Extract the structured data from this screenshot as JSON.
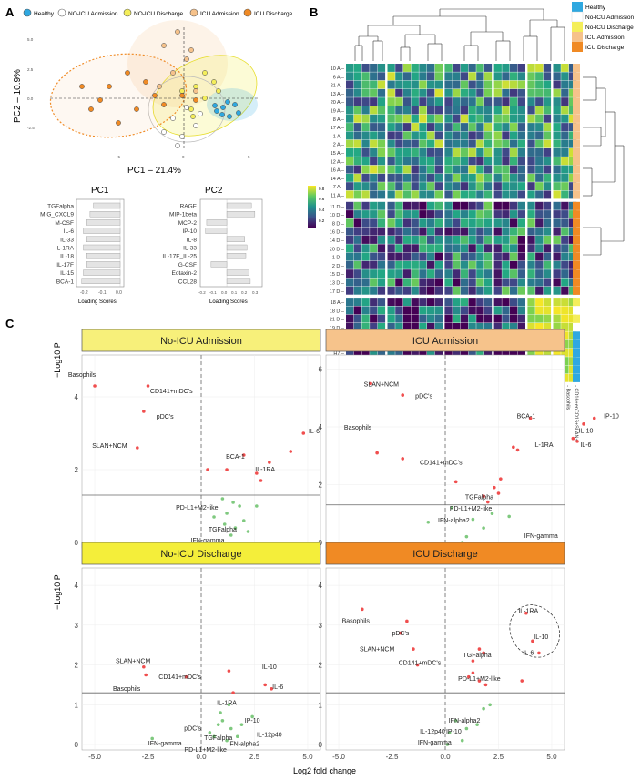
{
  "panel_labels": {
    "a": "A",
    "b": "B",
    "c": "C"
  },
  "colors": {
    "healthy": "#2fa8e0",
    "noicu_adm": "#ffffff",
    "noicu_dis": "#f4ee5a",
    "icu_adm": "#f6c28b",
    "icu_dis": "#f08a24",
    "sig": "#f04e4e",
    "nonsig": "#7fc97f"
  },
  "pca": {
    "legend": [
      "Healthy",
      "NO-ICU Admission",
      "NO-ICU Discharge",
      "ICU Admission",
      "ICU  Discharge"
    ],
    "xlabel": "PC1 – 21.4%",
    "ylabel": "PC2 – 10.9%",
    "xticks": [
      "-5",
      "0",
      "5"
    ],
    "yticks": [
      "5.0",
      "2.5",
      "0.0",
      "-2.5"
    ]
  },
  "loadings": {
    "pc1": {
      "title": "PC1",
      "labels": [
        "TGFalpha",
        "MIG_CXCL9",
        "M-CSF",
        "IL-6",
        "IL-33",
        "IL-1RA",
        "IL-18",
        "IL-17F",
        "IL-15",
        "BCA-1"
      ],
      "values": [
        -0.16,
        -0.18,
        -0.2,
        -0.22,
        -0.2,
        -0.22,
        -0.2,
        -0.2,
        -0.22,
        -0.23
      ],
      "xticks": [
        "-0.2",
        "-0.1",
        "0.0"
      ],
      "xlabel": "Loading Scores"
    },
    "pc2": {
      "title": "PC2",
      "labels": [
        "RAGE",
        "MIP-1beta",
        "MCP-2",
        "IP-10",
        "IL-8",
        "IL-33",
        "IL-17E_IL-25",
        "G-CSF",
        "Eotaxin-2",
        "CCL28"
      ],
      "values": [
        0.22,
        0.25,
        -0.18,
        -0.19,
        0.16,
        0.18,
        0.17,
        -0.14,
        0.2,
        0.21
      ],
      "xticks": [
        "-0.2",
        "-0.1",
        "0.0",
        "0.1",
        "0.2",
        "0.3"
      ],
      "xlabel": "Loading Scores"
    }
  },
  "heatmap": {
    "legend": [
      "Healthy",
      "No-ICU Admission",
      "No-ICU Discharge",
      "ICU Admission",
      "ICU Discharge"
    ],
    "scale_ticks": [
      "0.8",
      "0.6",
      "0.4",
      "0.2"
    ],
    "rows_top": [
      "10 A",
      "6 A",
      "21 A",
      "13 A",
      "20 A",
      "19 A",
      "8 A",
      "17 A",
      "1 A",
      "2 A",
      "15 A",
      "12 A",
      "16 A",
      "14 A",
      "7 A",
      "11 A"
    ],
    "rows_mid": [
      "11 D",
      "10 D",
      "8 D",
      "16 D",
      "14 D",
      "20 D",
      "1 D",
      "2 D",
      "15 D",
      "13 D",
      "17 D"
    ],
    "rows_bot": [
      "18 A",
      "18 D",
      "21 D",
      "19 D",
      "H11",
      "H9",
      "H7",
      "H13",
      "H10",
      "H8"
    ],
    "columns": [
      "CD163+++M2-like",
      "G-CSF",
      "IL-10",
      "RAGE",
      "IL-1RA",
      "MCP-2",
      "IL-13",
      "M-CSF",
      "IL-6",
      "IL-8",
      "IL-18A",
      "CCL28",
      "IL-16",
      "MIG_CXCL9",
      "IL-12p40",
      "IL-18",
      "IL-17F",
      "IL-1a",
      "IL-17F",
      "IL-33",
      "IL-25",
      "MIP-1beta",
      "PD-L1+M2-like",
      "Eotaxin-2",
      "CD141+mDC's",
      "pDC's",
      "Basophils",
      "CD16+enCD16+SLAN+"
    ],
    "col_gaps": [
      5,
      12,
      18,
      22,
      25
    ],
    "row_side_top": "icu_adm",
    "row_side_mid": "icu_dis"
  },
  "volcano": {
    "xlabel": "Log2 fold change",
    "ylabel": "−Log10 P",
    "xticks": [
      "-5.0",
      "-2.5",
      "0.0",
      "2.5",
      "5.0"
    ],
    "panels": [
      {
        "title": "No-ICU Admission",
        "ylim": [
          0,
          5
        ],
        "yticks": [
          "0",
          "2",
          "4"
        ],
        "labels": [
          {
            "t": "Basophils",
            "x": -5.6,
            "y": 4.55
          },
          {
            "t": "CD141+mDC's",
            "x": -1.4,
            "y": 4.1
          },
          {
            "t": "pDC's",
            "x": -1.7,
            "y": 3.4
          },
          {
            "t": "SLAN+NCM",
            "x": -4.3,
            "y": 2.6
          },
          {
            "t": "BCA-1",
            "x": 1.6,
            "y": 2.3
          },
          {
            "t": "IL-1RA",
            "x": 3.0,
            "y": 1.95
          },
          {
            "t": "IL-6",
            "x": 5.3,
            "y": 3.0
          },
          {
            "t": "IP-10",
            "x": 8.8,
            "y": 4.1
          },
          {
            "t": "IL-10",
            "x": 7.7,
            "y": 3.6
          },
          {
            "t": "PD-L1+M2-like",
            "x": -0.2,
            "y": 0.9
          },
          {
            "t": "TGFalpha",
            "x": 1.0,
            "y": 0.3
          },
          {
            "t": "IFN-gamma",
            "x": 0.3,
            "y": 0.0
          }
        ],
        "points": [
          {
            "x": -5.0,
            "y": 4.3,
            "s": 1
          },
          {
            "x": -2.5,
            "y": 4.3,
            "s": 1
          },
          {
            "x": -2.7,
            "y": 3.6,
            "s": 1
          },
          {
            "x": -3.0,
            "y": 2.6,
            "s": 1
          },
          {
            "x": 2.0,
            "y": 2.4,
            "s": 1
          },
          {
            "x": 2.6,
            "y": 1.9,
            "s": 1
          },
          {
            "x": 2.8,
            "y": 1.7,
            "s": 1
          },
          {
            "x": 3.2,
            "y": 2.2,
            "s": 1
          },
          {
            "x": 4.8,
            "y": 3.0,
            "s": 1
          },
          {
            "x": 6.8,
            "y": 3.7,
            "s": 1
          },
          {
            "x": 7.8,
            "y": 4.1,
            "s": 1
          },
          {
            "x": 4.2,
            "y": 2.5,
            "s": 1
          },
          {
            "x": 0.3,
            "y": 2.0,
            "s": 1
          },
          {
            "x": 1.2,
            "y": 2.0,
            "s": 1
          },
          {
            "x": 1.0,
            "y": 1.2,
            "s": 0
          },
          {
            "x": 1.5,
            "y": 1.1,
            "s": 0
          },
          {
            "x": 1.8,
            "y": 1.0,
            "s": 0
          },
          {
            "x": 1.2,
            "y": 0.8,
            "s": 0
          },
          {
            "x": 2.0,
            "y": 0.6,
            "s": 0
          },
          {
            "x": 2.2,
            "y": 0.3,
            "s": 0
          },
          {
            "x": 1.6,
            "y": 0.4,
            "s": 0
          },
          {
            "x": 1.1,
            "y": 0.5,
            "s": 0
          },
          {
            "x": 0.6,
            "y": 0.7,
            "s": 0
          },
          {
            "x": 2.6,
            "y": 1.0,
            "s": 0
          },
          {
            "x": 1.4,
            "y": 0.2,
            "s": 0
          }
        ]
      },
      {
        "title": "ICU Admission",
        "ylim": [
          0,
          6.3
        ],
        "yticks": [
          "0",
          "2",
          "4",
          "6"
        ],
        "labels": [
          {
            "t": "SLAN+NCM",
            "x": -3.0,
            "y": 5.4
          },
          {
            "t": "pDC's",
            "x": -1.0,
            "y": 5.0
          },
          {
            "t": "Basophils",
            "x": -4.1,
            "y": 3.9
          },
          {
            "t": "CD141+mDC's",
            "x": -0.2,
            "y": 2.7
          },
          {
            "t": "BCA-1",
            "x": 3.8,
            "y": 4.3
          },
          {
            "t": "IL-1RA",
            "x": 4.6,
            "y": 3.3
          },
          {
            "t": "IP-10",
            "x": 7.8,
            "y": 4.3
          },
          {
            "t": "IL-10",
            "x": 6.6,
            "y": 3.8
          },
          {
            "t": "IL-6",
            "x": 6.6,
            "y": 3.3
          },
          {
            "t": "TGFalpha",
            "x": 1.6,
            "y": 1.5
          },
          {
            "t": "PD-L1+M2-like",
            "x": 1.2,
            "y": 1.1
          },
          {
            "t": "IFN-alpha2",
            "x": 0.4,
            "y": 0.7
          },
          {
            "t": "IFN-gamma",
            "x": 4.5,
            "y": 0.15
          },
          {
            "t": "IL-12p40",
            "x": 0.2,
            "y": -0.25
          }
        ],
        "points": [
          {
            "x": -3.5,
            "y": 5.5,
            "s": 1
          },
          {
            "x": -2.0,
            "y": 5.1,
            "s": 1
          },
          {
            "x": -3.2,
            "y": 3.1,
            "s": 1
          },
          {
            "x": -2.0,
            "y": 2.9,
            "s": 1
          },
          {
            "x": 4.0,
            "y": 4.3,
            "s": 1
          },
          {
            "x": 3.2,
            "y": 3.3,
            "s": 1
          },
          {
            "x": 3.4,
            "y": 3.2,
            "s": 1
          },
          {
            "x": 6.5,
            "y": 4.1,
            "s": 1
          },
          {
            "x": 7.0,
            "y": 4.3,
            "s": 1
          },
          {
            "x": 6.0,
            "y": 3.6,
            "s": 1
          },
          {
            "x": 6.2,
            "y": 3.5,
            "s": 1
          },
          {
            "x": 0.5,
            "y": 2.1,
            "s": 1
          },
          {
            "x": 1.8,
            "y": 1.6,
            "s": 1
          },
          {
            "x": 2.5,
            "y": 1.7,
            "s": 1
          },
          {
            "x": 2.3,
            "y": 1.9,
            "s": 1
          },
          {
            "x": 2.0,
            "y": 1.4,
            "s": 1
          },
          {
            "x": 2.6,
            "y": 2.2,
            "s": 1
          },
          {
            "x": -0.8,
            "y": 0.7,
            "s": 0
          },
          {
            "x": 1.8,
            "y": 0.5,
            "s": 0
          },
          {
            "x": 2.2,
            "y": 1.0,
            "s": 0
          },
          {
            "x": 1.0,
            "y": 0.2,
            "s": 0
          },
          {
            "x": 0.8,
            "y": 0.0,
            "s": 0
          },
          {
            "x": 3.0,
            "y": 0.9,
            "s": 0
          },
          {
            "x": 0.3,
            "y": 1.2,
            "s": 0
          },
          {
            "x": 1.3,
            "y": 0.8,
            "s": 0
          }
        ]
      },
      {
        "title": "No-ICU Discharge",
        "ylim": [
          0,
          4.3
        ],
        "yticks": [
          "0",
          "1",
          "2",
          "3",
          "4"
        ],
        "labels": [
          {
            "t": "SLAN+NCM",
            "x": -3.2,
            "y": 2.05
          },
          {
            "t": "Basophils",
            "x": -3.5,
            "y": 1.35
          },
          {
            "t": "CD141+mDC's",
            "x": -1.0,
            "y": 1.65
          },
          {
            "t": "IL-10",
            "x": 3.2,
            "y": 1.9
          },
          {
            "t": "IL-6",
            "x": 3.6,
            "y": 1.4
          },
          {
            "t": "IL-1RA",
            "x": 1.2,
            "y": 1.0
          },
          {
            "t": "IP-10",
            "x": 2.4,
            "y": 0.55
          },
          {
            "t": "IL-12p40",
            "x": 3.2,
            "y": 0.2
          },
          {
            "t": "pDC's",
            "x": -0.4,
            "y": 0.35
          },
          {
            "t": "TGFalpha",
            "x": 0.8,
            "y": 0.12
          },
          {
            "t": "IFN-gamma",
            "x": -1.7,
            "y": -0.02
          },
          {
            "t": "IFN-alpha2",
            "x": 2.0,
            "y": -0.03
          },
          {
            "t": "PD-L1+M2-like",
            "x": 0.2,
            "y": -0.18
          }
        ],
        "points": [
          {
            "x": -2.7,
            "y": 1.95,
            "s": 1
          },
          {
            "x": -2.6,
            "y": 1.75,
            "s": 1
          },
          {
            "x": -0.7,
            "y": 1.7,
            "s": 1
          },
          {
            "x": 1.3,
            "y": 1.85,
            "s": 1
          },
          {
            "x": 1.5,
            "y": 1.3,
            "s": 1
          },
          {
            "x": 3.0,
            "y": 1.5,
            "s": 1
          },
          {
            "x": 3.3,
            "y": 1.4,
            "s": 1
          },
          {
            "x": -2.3,
            "y": 0.15,
            "s": 0
          },
          {
            "x": 0.4,
            "y": 0.3,
            "s": 0
          },
          {
            "x": 0.8,
            "y": 0.5,
            "s": 0
          },
          {
            "x": 1.0,
            "y": 0.6,
            "s": 0
          },
          {
            "x": 1.4,
            "y": 0.4,
            "s": 0
          },
          {
            "x": 1.2,
            "y": 0.1,
            "s": 0
          },
          {
            "x": 1.7,
            "y": 0.2,
            "s": 0
          },
          {
            "x": 2.4,
            "y": 0.7,
            "s": 0
          },
          {
            "x": 1.3,
            "y": 1.0,
            "s": 0
          },
          {
            "x": 0.9,
            "y": 0.8,
            "s": 0
          },
          {
            "x": 1.9,
            "y": 0.5,
            "s": 0
          },
          {
            "x": 0.6,
            "y": 0.2,
            "s": 0
          }
        ]
      },
      {
        "title": "ICU Discharge",
        "ylim": [
          0,
          4.3
        ],
        "yticks": [
          "0",
          "1",
          "2",
          "3",
          "4"
        ],
        "labels": [
          {
            "t": "Basophils",
            "x": -4.2,
            "y": 3.05
          },
          {
            "t": "pDC's",
            "x": -2.1,
            "y": 2.75
          },
          {
            "t": "SLAN+NCM",
            "x": -3.2,
            "y": 2.35
          },
          {
            "t": "CD141+mDC's",
            "x": -1.2,
            "y": 2.0
          },
          {
            "t": "TGFalpha",
            "x": 1.5,
            "y": 2.2
          },
          {
            "t": "IL-1RA",
            "x": 3.9,
            "y": 3.3
          },
          {
            "t": "IL-10",
            "x": 4.5,
            "y": 2.65
          },
          {
            "t": "IL-6",
            "x": 3.9,
            "y": 2.25
          },
          {
            "t": "PD-L1+M2-like",
            "x": 1.6,
            "y": 1.6
          },
          {
            "t": "IFN-alpha2",
            "x": 0.9,
            "y": 0.55
          },
          {
            "t": "IL-12p40",
            "x": -0.6,
            "y": 0.28
          },
          {
            "t": "IP-10",
            "x": 0.4,
            "y": 0.28
          },
          {
            "t": "IFN-gamma",
            "x": -0.5,
            "y": 0.0
          }
        ],
        "points": [
          {
            "x": -3.9,
            "y": 3.4,
            "s": 1
          },
          {
            "x": -1.8,
            "y": 3.1,
            "s": 1
          },
          {
            "x": -2.1,
            "y": 2.8,
            "s": 1
          },
          {
            "x": -1.5,
            "y": 2.4,
            "s": 1
          },
          {
            "x": -1.3,
            "y": 2.0,
            "s": 1
          },
          {
            "x": 1.3,
            "y": 2.1,
            "s": 1
          },
          {
            "x": 1.6,
            "y": 2.4,
            "s": 1
          },
          {
            "x": 1.8,
            "y": 2.3,
            "s": 1
          },
          {
            "x": 3.8,
            "y": 3.3,
            "s": 1
          },
          {
            "x": 4.1,
            "y": 2.6,
            "s": 1
          },
          {
            "x": 4.4,
            "y": 2.3,
            "s": 1
          },
          {
            "x": 1.3,
            "y": 1.8,
            "s": 1
          },
          {
            "x": 1.6,
            "y": 1.6,
            "s": 1
          },
          {
            "x": 1.9,
            "y": 1.5,
            "s": 1
          },
          {
            "x": 3.6,
            "y": 1.6,
            "s": 1
          },
          {
            "x": 1.1,
            "y": 1.7,
            "s": 1
          },
          {
            "x": 0.5,
            "y": 0.6,
            "s": 0
          },
          {
            "x": 1.0,
            "y": 0.4,
            "s": 0
          },
          {
            "x": 1.8,
            "y": 0.9,
            "s": 0
          },
          {
            "x": 2.1,
            "y": 1.0,
            "s": 0
          },
          {
            "x": 0.2,
            "y": 0.3,
            "s": 0
          },
          {
            "x": 0.8,
            "y": 0.1,
            "s": 0
          },
          {
            "x": 1.5,
            "y": 0.5,
            "s": 0
          },
          {
            "x": 0.1,
            "y": 0.0,
            "s": 0
          }
        ]
      }
    ]
  }
}
